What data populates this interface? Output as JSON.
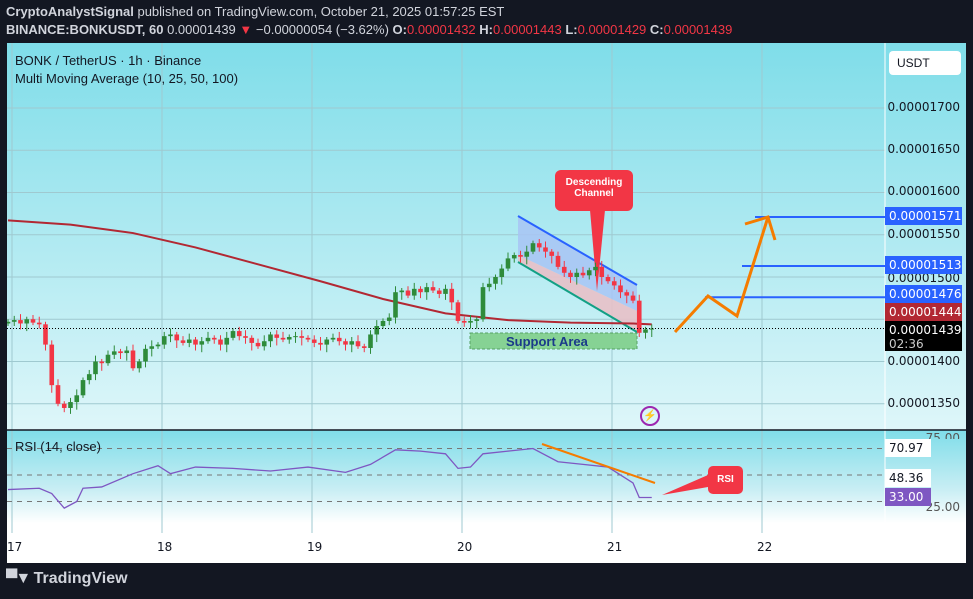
{
  "header": {
    "author": "CryptoAnalystSignal",
    "published": " published on TradingView.com, October 21, 2025 01:57:25 EST",
    "symbol": "BINANCE:BONKUSDT, 60",
    "last": "0.00001439",
    "change": "−0.00000054 (−3.62%)",
    "o": "0.00001432",
    "h": "0.00001443",
    "l": "0.00001429",
    "c": "0.00001439",
    "down_icon": "▼"
  },
  "legend": {
    "title": "BONK / TetherUS · 1h · Binance",
    "indicator": "Multi Moving Average (10, 25, 50, 100)",
    "rsi": "RSI (14, close)"
  },
  "price_axis": {
    "currency": "USDT",
    "ticks": [
      "0.00001700",
      "0.00001650",
      "0.00001600",
      "0.00001550",
      "0.00001500",
      "0.00001400",
      "0.00001350"
    ],
    "tags": {
      "t1": "0.00001571",
      "t2": "0.00001513",
      "t3": "0.00001476",
      "ma": "0.00001444",
      "last": "0.00001439",
      "countdown": "02:36"
    }
  },
  "rsi_axis": {
    "ticks": [
      "75.00",
      "25.00"
    ],
    "tags": {
      "a": "70.97",
      "b": "48.36",
      "rsi": "33.00"
    }
  },
  "time_axis": [
    "17",
    "18",
    "19",
    "20",
    "21",
    "22"
  ],
  "annotations": {
    "channel": "Descending Channel",
    "support": "Support Area",
    "rsi_callout": "RSI"
  },
  "colors": {
    "up": "#2e8b3a",
    "down": "#f23645",
    "ma": "#b22833",
    "level": "#2962ff",
    "projection": "#f57c00",
    "rsi": "#7e57c2"
  },
  "chart_data": {
    "type": "candlestick",
    "unit": "price ×1e-8 USDT",
    "closes": [
      1447,
      1449,
      1445,
      1450,
      1446,
      1444,
      1420,
      1372,
      1350,
      1345,
      1352,
      1360,
      1378,
      1385,
      1400,
      1398,
      1408,
      1412,
      1410,
      1413,
      1392,
      1400,
      1415,
      1418,
      1420,
      1430,
      1432,
      1425,
      1422,
      1426,
      1420,
      1424,
      1428,
      1426,
      1420,
      1428,
      1436,
      1430,
      1428,
      1422,
      1418,
      1424,
      1432,
      1428,
      1426,
      1429,
      1430,
      1428,
      1426,
      1422,
      1420,
      1426,
      1428,
      1424,
      1420,
      1424,
      1418,
      1416,
      1432,
      1442,
      1448,
      1452,
      1482,
      1484,
      1478,
      1486,
      1482,
      1488,
      1484,
      1480,
      1486,
      1470,
      1448,
      1446,
      1448,
      1450,
      1488,
      1492,
      1500,
      1510,
      1522,
      1526,
      1524,
      1530,
      1540,
      1535,
      1530,
      1525,
      1512,
      1505,
      1500,
      1505,
      1502,
      1508,
      1512,
      1500,
      1495,
      1490,
      1482,
      1478,
      1472,
      1434,
      1438,
      1439
    ],
    "ma100": [
      [
        0,
        1567
      ],
      [
        10,
        1562
      ],
      [
        20,
        1552
      ],
      [
        30,
        1535
      ],
      [
        40,
        1515
      ],
      [
        50,
        1495
      ],
      [
        60,
        1474
      ],
      [
        70,
        1457
      ],
      [
        80,
        1449
      ],
      [
        90,
        1446
      ],
      [
        100,
        1445
      ],
      [
        103,
        1444
      ]
    ],
    "rsi": [
      [
        0,
        39
      ],
      [
        5,
        40
      ],
      [
        7,
        36
      ],
      [
        9,
        25
      ],
      [
        11,
        30
      ],
      [
        12,
        40
      ],
      [
        15,
        41
      ],
      [
        20,
        51
      ],
      [
        24,
        57
      ],
      [
        26,
        51
      ],
      [
        30,
        56
      ],
      [
        36,
        55
      ],
      [
        42,
        53
      ],
      [
        48,
        56
      ],
      [
        54,
        52
      ],
      [
        58,
        58
      ],
      [
        62,
        69
      ],
      [
        66,
        68
      ],
      [
        70,
        66
      ],
      [
        72,
        55
      ],
      [
        74,
        56
      ],
      [
        76,
        66
      ],
      [
        80,
        68
      ],
      [
        84,
        70
      ],
      [
        88,
        60
      ],
      [
        92,
        58
      ],
      [
        96,
        56
      ],
      [
        100,
        44
      ],
      [
        101,
        33
      ],
      [
        103,
        33
      ]
    ]
  }
}
